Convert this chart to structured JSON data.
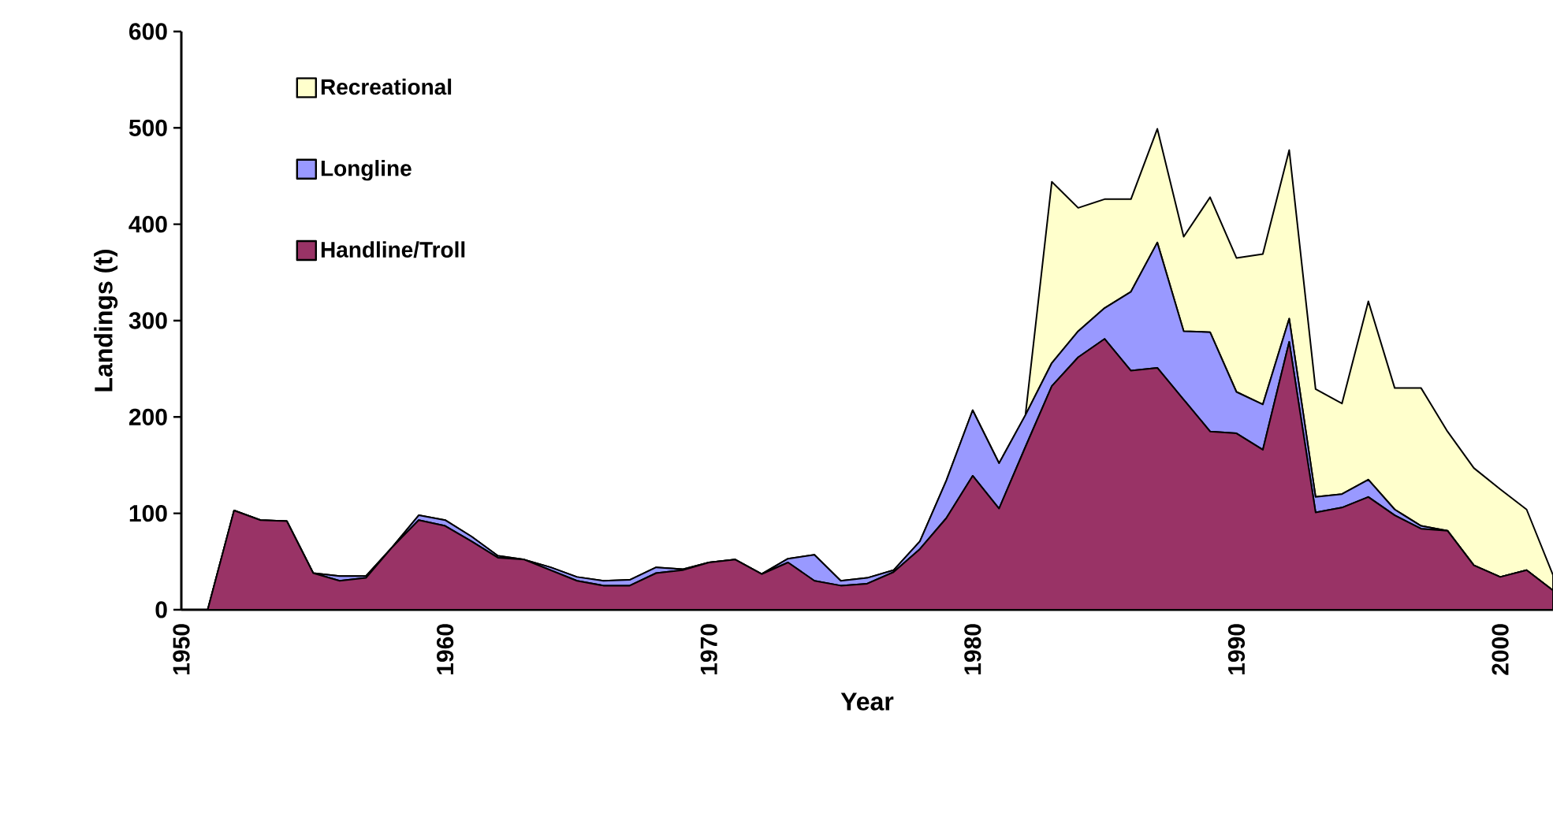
{
  "chart_data": {
    "type": "area",
    "stacked": true,
    "xlabel": "Year",
    "ylabel": "Landings (t)",
    "legend": "top left",
    "xlim": [
      1950,
      2002
    ],
    "ylim": [
      0,
      600
    ],
    "xticks": [
      1950,
      1960,
      1970,
      1980,
      1990,
      2000
    ],
    "yticks": [
      0,
      100,
      200,
      300,
      400,
      500,
      600
    ],
    "x": [
      1951,
      1952,
      1953,
      1954,
      1955,
      1956,
      1957,
      1958,
      1959,
      1960,
      1961,
      1962,
      1963,
      1964,
      1965,
      1966,
      1967,
      1968,
      1969,
      1970,
      1971,
      1972,
      1973,
      1974,
      1975,
      1976,
      1977,
      1978,
      1979,
      1980,
      1981,
      1982,
      1983,
      1984,
      1985,
      1986,
      1987,
      1988,
      1989,
      1990,
      1991,
      1992,
      1993,
      1994,
      1995,
      1996,
      1997,
      1998,
      1999,
      2000,
      2001,
      2002
    ],
    "series": [
      {
        "name": "Handline/Troll",
        "color": "#993366",
        "values": [
          0,
          103,
          93,
          92,
          38,
          30,
          33,
          65,
          93,
          87,
          71,
          54,
          52,
          41,
          30,
          25,
          25,
          38,
          41,
          49,
          52,
          37,
          49,
          30,
          25,
          27,
          39,
          63,
          95,
          139,
          105,
          169,
          232,
          262,
          281,
          248,
          251,
          218,
          185,
          183,
          166,
          278,
          101,
          106,
          117,
          98,
          84,
          82,
          46,
          34,
          41,
          20
        ]
      },
      {
        "name": "Longline",
        "color": "#9999ff",
        "values": [
          0,
          0,
          0,
          0,
          0,
          5,
          2,
          0,
          5,
          6,
          5,
          2,
          0,
          3,
          4,
          5,
          6,
          6,
          1,
          0,
          0,
          0,
          4,
          27,
          5,
          6,
          2,
          8,
          39,
          68,
          47,
          33,
          24,
          27,
          32,
          82,
          130,
          71,
          103,
          43,
          47,
          24,
          16,
          14,
          18,
          6,
          3,
          0,
          0,
          0,
          0,
          0
        ]
      },
      {
        "name": "Recreational",
        "color": "#ffffcc",
        "values": [
          0,
          0,
          0,
          0,
          0,
          0,
          0,
          0,
          0,
          0,
          0,
          0,
          0,
          0,
          0,
          0,
          0,
          0,
          0,
          0,
          0,
          0,
          0,
          0,
          0,
          0,
          0,
          0,
          0,
          0,
          0,
          0,
          188,
          128,
          113,
          96,
          118,
          98,
          140,
          139,
          156,
          175,
          112,
          94,
          185,
          126,
          143,
          103,
          101,
          91,
          63,
          16
        ]
      }
    ]
  }
}
